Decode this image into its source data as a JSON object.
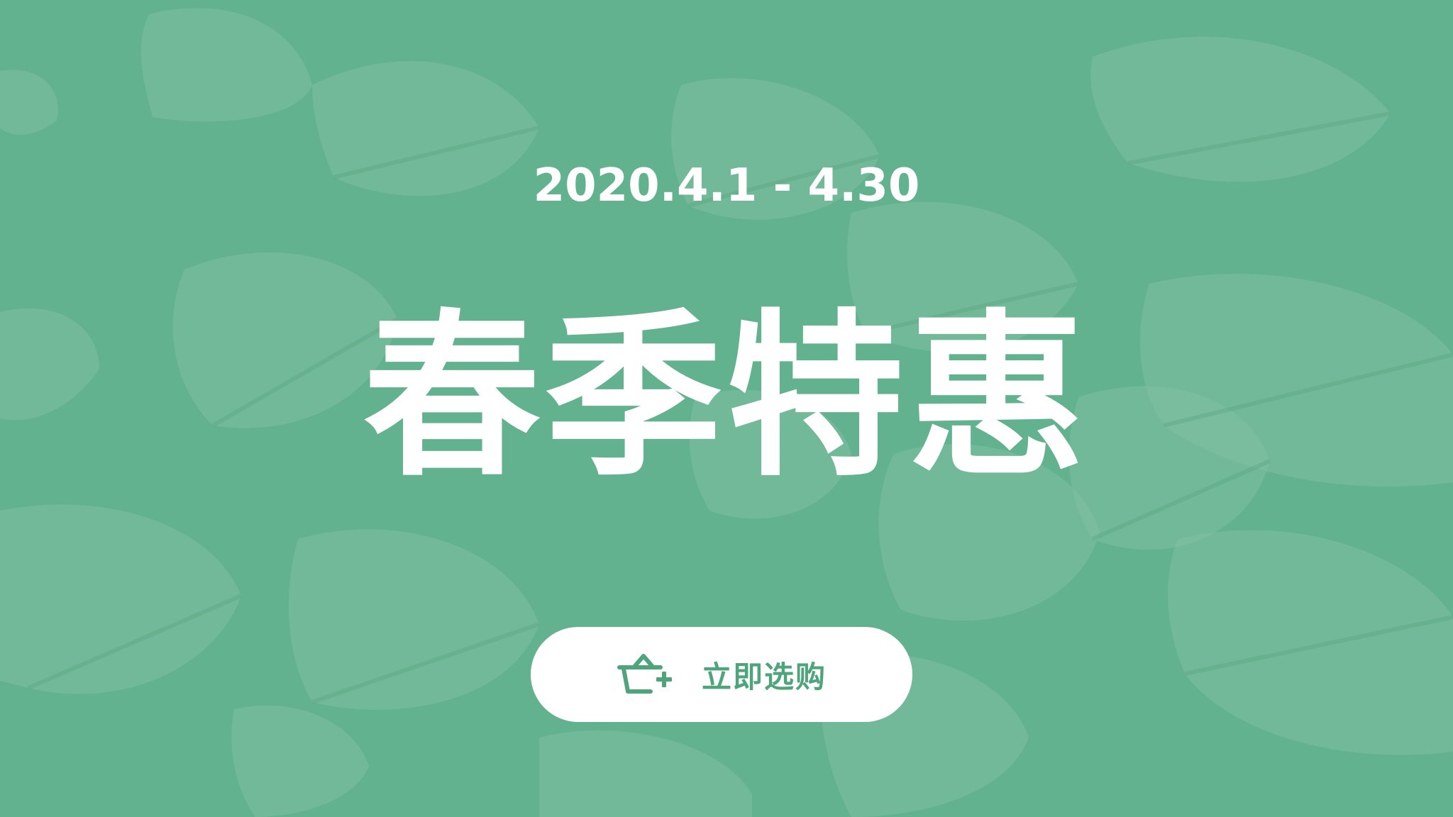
{
  "promo": {
    "date_range": "2020.4.1 - 4.30",
    "headline": "春季特惠",
    "cta_label": "立即选购",
    "cta_icon": "shopping-basket-add-icon"
  },
  "colors": {
    "background": "#63b28f",
    "pattern": "#7fc0a3",
    "text": "#ffffff",
    "button_bg": "#ffffff",
    "accent": "#4fa47c"
  }
}
